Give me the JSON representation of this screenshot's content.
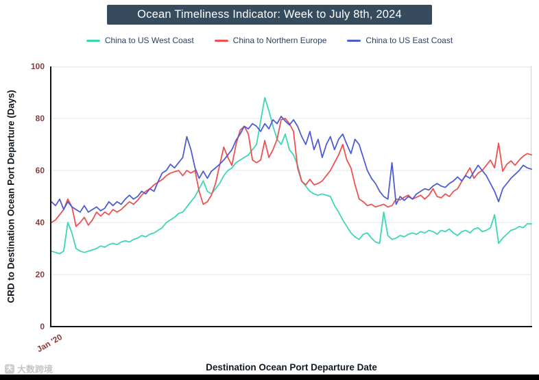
{
  "watermark": "大数跨境",
  "colors": {
    "title_bg": "#374b5f",
    "title_text": "#ffffff",
    "legend_text": "#2a3f5f",
    "tick_label": "#8b3a3a",
    "axis_line": "#111111",
    "axis_title": "#101820",
    "grid": "#e4e4e4",
    "frame": "#d4d4d4",
    "watermark": "#bdbdbd",
    "bottom_bar": "#000000"
  },
  "chart_data": {
    "type": "line",
    "title": "Ocean Timeliness Indicator: Week to July 8th, 2024",
    "xlabel": "Destination Ocean Port Departure Date",
    "ylabel": "CRD to Destination Ocean Port Departure (Days)",
    "x_tick_labels": [
      "Jan '20"
    ],
    "ylim": [
      0,
      100
    ],
    "y_ticks": [
      0,
      20,
      40,
      60,
      80,
      100
    ],
    "grid": "horizontal",
    "legend_position": "top",
    "series": [
      {
        "name": "China to US West Coast",
        "color": "#3ad6b6",
        "values": [
          29,
          28.5,
          28,
          29,
          40,
          36,
          30,
          29,
          28.5,
          29,
          29.5,
          30,
          31,
          30.5,
          31.5,
          32,
          31.5,
          32.5,
          33,
          32.5,
          33.5,
          34,
          35,
          34.5,
          35.5,
          36,
          37,
          38,
          40,
          41,
          42,
          43.5,
          44,
          46,
          48,
          50,
          53,
          56,
          52,
          51,
          53,
          55,
          58,
          60,
          61,
          63,
          64,
          65,
          66,
          68,
          70,
          79,
          88,
          83,
          77,
          72,
          70,
          74,
          68,
          66,
          62,
          56,
          54,
          52,
          51,
          50.5,
          51,
          50.5,
          50,
          46.5,
          44,
          41,
          38.5,
          36,
          34.5,
          33.5,
          35.5,
          36,
          34,
          32.5,
          32,
          44,
          35,
          33.5,
          34,
          35,
          34.5,
          35.5,
          36,
          35.5,
          36.5,
          36,
          37,
          36.5,
          35.5,
          37,
          36.5,
          37.5,
          36,
          35,
          36.5,
          37,
          36,
          37.5,
          38,
          36.5,
          37,
          38,
          43,
          32,
          34,
          35.5,
          37,
          37.5,
          38.5,
          38,
          39.5,
          39.5
        ]
      },
      {
        "name": "China to Northern Europe",
        "color": "#ef4f4f",
        "values": [
          40,
          41,
          43,
          45,
          49,
          46,
          38.5,
          40,
          42,
          39,
          41,
          44,
          42.5,
          44,
          43,
          45,
          44,
          45,
          46.5,
          48,
          47,
          48.5,
          50.5,
          52,
          53,
          54.5,
          55.5,
          56.5,
          58,
          59,
          59.5,
          60,
          58,
          60,
          59,
          60,
          52,
          47,
          48,
          50.5,
          55,
          62,
          69,
          65,
          62,
          70,
          75.5,
          77,
          74,
          64,
          63,
          64,
          71.5,
          65,
          68,
          72,
          79.5,
          80,
          78,
          75,
          61,
          55.8,
          54.5,
          56.6,
          54.5,
          55,
          56,
          58,
          60,
          63,
          66,
          70,
          64,
          61,
          54.5,
          49,
          48,
          46.5,
          47,
          46,
          46.5,
          47,
          46,
          46.5,
          49,
          48.7,
          49.7,
          50.5,
          49,
          49.7,
          50.5,
          49,
          50.5,
          53,
          50,
          49.5,
          51,
          50,
          52,
          53,
          55.8,
          58.4,
          61,
          57,
          59,
          60,
          62,
          64,
          61,
          70.5,
          59.7,
          62.4,
          63.7,
          62,
          64,
          65.5,
          66.5,
          66
        ]
      },
      {
        "name": "China to US East Coast",
        "color": "#4d5bd2",
        "values": [
          48,
          46.5,
          49,
          45,
          48,
          46,
          45,
          44,
          46.5,
          44,
          45,
          46,
          44.5,
          45.5,
          48,
          46.5,
          48,
          47,
          49,
          50.5,
          49,
          50,
          52,
          51,
          53,
          52,
          55.8,
          59,
          60,
          62.4,
          61,
          63,
          65,
          73,
          68,
          61,
          57,
          59.7,
          57,
          59.7,
          61,
          62.4,
          64,
          66,
          68,
          71.6,
          74,
          77,
          76,
          78,
          77,
          75,
          78,
          76,
          79.5,
          78,
          80.8,
          79,
          77.5,
          79.5,
          77,
          73,
          70,
          75,
          68,
          72,
          65,
          70,
          73,
          68,
          72,
          74,
          70,
          66.5,
          72,
          70,
          65,
          60,
          57,
          55,
          52,
          50,
          49,
          63,
          47,
          50,
          48.5,
          50,
          49,
          51,
          52,
          53,
          52.5,
          54,
          55,
          54,
          53.5,
          55,
          56,
          57.5,
          56,
          58,
          57,
          59.5,
          62,
          60,
          58,
          55,
          52,
          48,
          53,
          55,
          57,
          58.5,
          60,
          62,
          61,
          60.5
        ]
      }
    ]
  }
}
